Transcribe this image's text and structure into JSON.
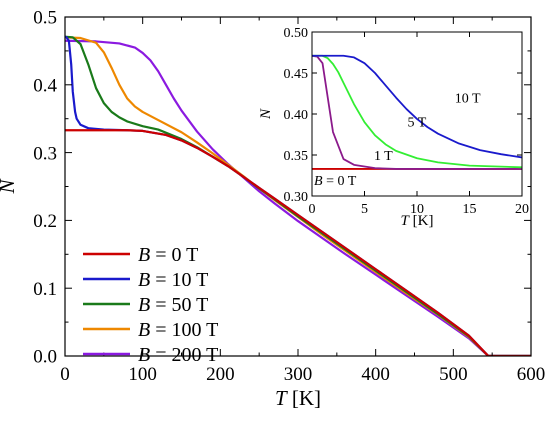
{
  "chart_data": [
    {
      "type": "line",
      "xlabel_var": "T",
      "xlabel_unit": " [K]",
      "ylabel": "N",
      "xlim": [
        0,
        600
      ],
      "ylim": [
        0,
        0.5
      ],
      "xticks": [
        0,
        100,
        200,
        300,
        400,
        500,
        600
      ],
      "yticks": [
        0.0,
        0.1,
        0.2,
        0.3,
        0.4,
        0.5
      ],
      "xtick_labels": [
        "0",
        "100",
        "200",
        "300",
        "400",
        "500",
        "600"
      ],
      "ytick_labels": [
        "0.0",
        "0.1",
        "0.2",
        "0.3",
        "0.4",
        "0.5"
      ],
      "grid": false,
      "legend_position": "lower-left",
      "series": [
        {
          "name": "B = 0 T",
          "legend_var": "B",
          "legend_value": " = 0 T",
          "color": "#cc0000",
          "x": [
            0,
            20,
            50,
            80,
            100,
            130,
            150,
            170,
            190,
            210,
            230,
            250,
            270,
            300,
            330,
            360,
            400,
            440,
            480,
            520,
            545,
            600
          ],
          "y": [
            0.333,
            0.333,
            0.333,
            0.333,
            0.332,
            0.326,
            0.318,
            0.307,
            0.294,
            0.28,
            0.264,
            0.248,
            0.232,
            0.208,
            0.184,
            0.16,
            0.128,
            0.096,
            0.064,
            0.03,
            0.0,
            0.0
          ]
        },
        {
          "name": "B = 10 T",
          "legend_var": "B",
          "legend_value": " = 10 T",
          "color": "#1a1acc",
          "x": [
            0,
            2,
            5,
            8,
            10,
            13,
            15,
            20,
            30,
            50,
            80,
            100,
            130,
            150,
            170,
            190,
            210,
            230,
            250,
            270,
            300,
            330,
            360,
            400,
            440,
            480,
            520,
            545,
            600
          ],
          "y": [
            0.471,
            0.47,
            0.465,
            0.43,
            0.39,
            0.36,
            0.35,
            0.341,
            0.336,
            0.334,
            0.333,
            0.332,
            0.326,
            0.318,
            0.307,
            0.294,
            0.28,
            0.264,
            0.248,
            0.232,
            0.208,
            0.184,
            0.16,
            0.128,
            0.096,
            0.064,
            0.03,
            0.0,
            0.0
          ]
        },
        {
          "name": "B = 50 T",
          "legend_var": "B",
          "legend_value": " = 50 T",
          "color": "#1a7a1a",
          "x": [
            0,
            10,
            20,
            30,
            40,
            50,
            60,
            70,
            80,
            100,
            120,
            150,
            170,
            190,
            210,
            230,
            250,
            270,
            300,
            330,
            360,
            400,
            440,
            480,
            520,
            545,
            600
          ],
          "y": [
            0.471,
            0.47,
            0.46,
            0.43,
            0.395,
            0.373,
            0.36,
            0.352,
            0.346,
            0.339,
            0.334,
            0.32,
            0.308,
            0.294,
            0.28,
            0.264,
            0.247,
            0.231,
            0.206,
            0.182,
            0.158,
            0.126,
            0.094,
            0.062,
            0.029,
            0.0,
            0.0
          ]
        },
        {
          "name": "B = 100 T",
          "legend_var": "B",
          "legend_value": " = 100 T",
          "color": "#ee8800",
          "x": [
            0,
            20,
            40,
            50,
            60,
            70,
            80,
            90,
            100,
            120,
            150,
            170,
            190,
            210,
            230,
            250,
            270,
            300,
            330,
            360,
            400,
            440,
            480,
            520,
            545,
            600
          ],
          "y": [
            0.47,
            0.469,
            0.462,
            0.448,
            0.425,
            0.4,
            0.38,
            0.368,
            0.36,
            0.348,
            0.33,
            0.315,
            0.299,
            0.282,
            0.265,
            0.247,
            0.23,
            0.205,
            0.18,
            0.156,
            0.124,
            0.092,
            0.061,
            0.028,
            0.0,
            0.0
          ]
        },
        {
          "name": "B = 200 T",
          "legend_var": "B",
          "legend_value": " = 200 T",
          "color": "#8b1ae0",
          "x": [
            0,
            40,
            70,
            90,
            100,
            110,
            120,
            130,
            140,
            150,
            170,
            190,
            210,
            230,
            250,
            270,
            300,
            330,
            360,
            400,
            440,
            480,
            520,
            545,
            600
          ],
          "y": [
            0.465,
            0.464,
            0.461,
            0.455,
            0.447,
            0.436,
            0.42,
            0.4,
            0.38,
            0.362,
            0.331,
            0.305,
            0.283,
            0.263,
            0.243,
            0.225,
            0.199,
            0.175,
            0.151,
            0.12,
            0.089,
            0.058,
            0.026,
            0.0,
            0.0
          ]
        }
      ]
    },
    {
      "type": "line",
      "xlabel_var": "T",
      "xlabel_unit": " [K]",
      "ylabel": "N",
      "xlim": [
        0,
        20
      ],
      "ylim": [
        0.3,
        0.5
      ],
      "xticks": [
        0,
        5,
        10,
        15,
        20
      ],
      "yticks": [
        0.3,
        0.35,
        0.4,
        0.45,
        0.5
      ],
      "xtick_labels": [
        "0",
        "5",
        "10",
        "15",
        "20"
      ],
      "ytick_labels": [
        "0.30",
        "0.35",
        "0.40",
        "0.45",
        "0.50"
      ],
      "grid": false,
      "annotations": [
        {
          "text": "10 T",
          "x": 13.6,
          "y": 0.414
        },
        {
          "text": "5 T",
          "x": 9.1,
          "y": 0.385
        },
        {
          "text": "1 T",
          "x": 5.9,
          "y": 0.344
        }
      ],
      "corner_label": {
        "var": "B",
        "value": " = 0 T"
      },
      "series": [
        {
          "name": "B = 0 T",
          "color": "#cc0000",
          "x": [
            0,
            20
          ],
          "y": [
            0.333,
            0.333
          ]
        },
        {
          "name": "1 T",
          "color": "#8b1a8b",
          "x": [
            0,
            0.5,
            1.0,
            1.5,
            2.0,
            3.0,
            4.0,
            6.0,
            8.0,
            20.0
          ],
          "y": [
            0.471,
            0.47,
            0.462,
            0.42,
            0.378,
            0.345,
            0.338,
            0.334,
            0.333,
            0.333
          ]
        },
        {
          "name": "5 T",
          "color": "#33ee33",
          "x": [
            0,
            1.0,
            1.5,
            2.0,
            2.5,
            3.0,
            4.0,
            5.0,
            6.0,
            7.0,
            8.0,
            10.0,
            12.0,
            15.0,
            20.0
          ],
          "y": [
            0.471,
            0.471,
            0.468,
            0.461,
            0.451,
            0.438,
            0.412,
            0.39,
            0.374,
            0.363,
            0.355,
            0.346,
            0.341,
            0.337,
            0.335
          ]
        },
        {
          "name": "10 T",
          "color": "#1a1acc",
          "x": [
            0,
            2.0,
            3.0,
            4.0,
            5.0,
            6.0,
            7.0,
            8.0,
            9.0,
            10.0,
            11.0,
            12.0,
            14.0,
            16.0,
            18.0,
            20.0
          ],
          "y": [
            0.471,
            0.471,
            0.471,
            0.469,
            0.462,
            0.45,
            0.435,
            0.42,
            0.406,
            0.394,
            0.384,
            0.376,
            0.364,
            0.356,
            0.351,
            0.347
          ]
        }
      ]
    }
  ]
}
